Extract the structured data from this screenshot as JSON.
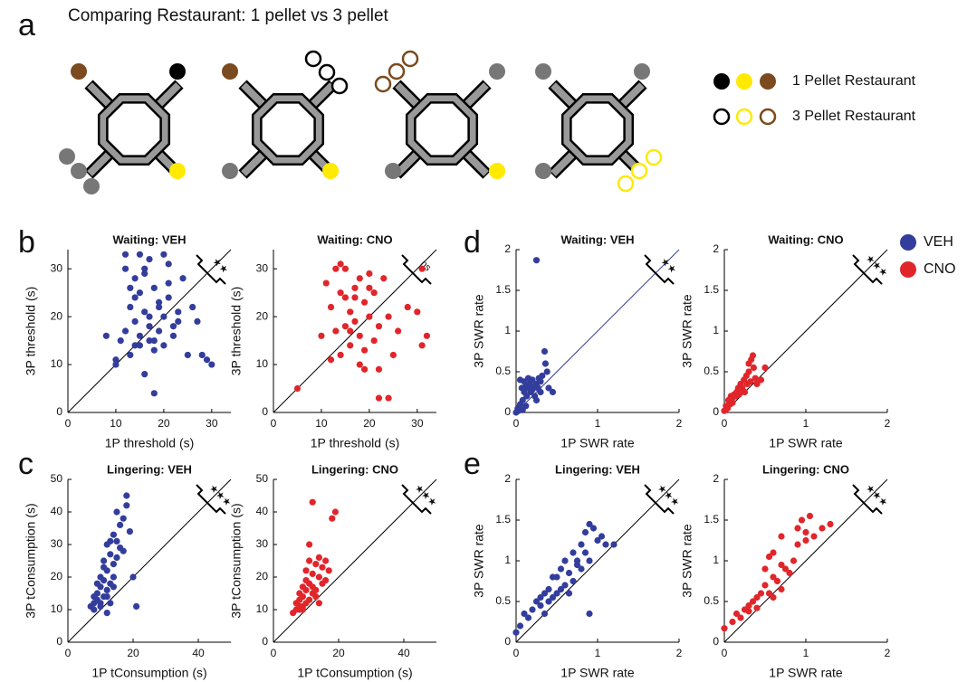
{
  "panel_labels": [
    "a",
    "b",
    "c",
    "d",
    "e"
  ],
  "panel_a": {
    "title": "Comparing Restaurant: 1 pellet vs 3 pellet",
    "legend": [
      "1 Pellet Restaurant",
      "3 Pellet Restaurant"
    ]
  },
  "legend": [
    {
      "name": "VEH",
      "color": "#333d9b"
    },
    {
      "name": "CNO",
      "color": "#e0262b"
    }
  ],
  "chart_data": [
    {
      "type": "scatter",
      "title": "Waiting: VEH",
      "xlabel": "1P threshold (s)",
      "ylabel": "3P threshold (s)",
      "annotation": "★★",
      "color": "#333d9b",
      "diag_color": "#000000",
      "xlim": [
        0,
        34
      ],
      "ylim": [
        0,
        34
      ],
      "xticks": [
        0,
        10,
        20,
        30
      ],
      "yticks": [
        0,
        10,
        20,
        30
      ],
      "x": [
        8,
        10,
        11,
        12,
        12,
        13,
        13,
        14,
        14,
        14,
        15,
        15,
        15,
        16,
        16,
        16,
        17,
        17,
        17,
        18,
        18,
        18,
        19,
        19,
        20,
        20,
        20,
        21,
        21,
        22,
        22,
        23,
        24,
        25,
        26,
        27,
        28,
        29,
        30,
        13,
        15,
        17,
        19,
        21,
        12,
        14,
        16,
        18,
        10,
        23
      ],
      "y": [
        16,
        10,
        15,
        33,
        30,
        22,
        12,
        28,
        19,
        14,
        33,
        25,
        16,
        30,
        21,
        8,
        32,
        18,
        15,
        26,
        13,
        4,
        22,
        17,
        33,
        20,
        14,
        31,
        24,
        18,
        16,
        21,
        28,
        12,
        22,
        19,
        12,
        11,
        10,
        26,
        14,
        20,
        23,
        27,
        17,
        24,
        29,
        15,
        11,
        19
      ]
    },
    {
      "type": "scatter",
      "title": "Waiting: CNO",
      "xlabel": "1P threshold (s)",
      "ylabel": "3P threshold (s)",
      "annotation": "ns",
      "color": "#e0262b",
      "diag_color": "#000000",
      "xlim": [
        0,
        34
      ],
      "ylim": [
        0,
        34
      ],
      "xticks": [
        0,
        10,
        20,
        30
      ],
      "yticks": [
        0,
        10,
        20,
        30
      ],
      "x": [
        5,
        10,
        11,
        12,
        13,
        13,
        14,
        14,
        15,
        15,
        15,
        16,
        16,
        17,
        17,
        18,
        18,
        18,
        19,
        19,
        20,
        20,
        21,
        21,
        22,
        22,
        23,
        24,
        25,
        26,
        28,
        30,
        31,
        31,
        32,
        22,
        24,
        12,
        16,
        19,
        14,
        17,
        20
      ],
      "y": [
        5,
        16,
        27,
        22,
        30,
        17,
        25,
        12,
        24,
        18,
        30,
        14,
        21,
        26,
        19,
        28,
        10,
        16,
        23,
        9,
        20,
        29,
        15,
        25,
        3,
        18,
        28,
        3,
        12,
        17,
        22,
        21,
        14,
        30,
        16,
        9,
        20,
        11,
        17,
        13,
        31,
        24,
        26
      ]
    },
    {
      "type": "scatter",
      "title": "Waiting: VEH",
      "xlabel": "1P SWR rate",
      "ylabel": "3P SWR rate",
      "annotation": "★★",
      "color": "#333d9b",
      "diag_color": "#333d9b",
      "xlim": [
        0,
        2
      ],
      "ylim": [
        0,
        2
      ],
      "xticks": [
        0,
        1,
        2
      ],
      "yticks": [
        0,
        0.5,
        1,
        1.5,
        2
      ],
      "x": [
        0.0,
        0.02,
        0.03,
        0.05,
        0.05,
        0.07,
        0.08,
        0.1,
        0.1,
        0.12,
        0.13,
        0.15,
        0.15,
        0.17,
        0.18,
        0.2,
        0.2,
        0.22,
        0.23,
        0.25,
        0.25,
        0.27,
        0.28,
        0.3,
        0.3,
        0.32,
        0.35,
        0.36,
        0.38,
        0.4,
        0.45,
        0.25,
        0.12,
        0.08
      ],
      "y": [
        0.0,
        0.05,
        0.02,
        0.1,
        0.4,
        0.3,
        0.15,
        0.38,
        0.25,
        0.32,
        0.2,
        0.42,
        0.3,
        0.35,
        0.25,
        0.4,
        0.28,
        0.32,
        0.2,
        1.87,
        0.35,
        0.3,
        0.42,
        0.25,
        0.38,
        0.45,
        0.75,
        0.6,
        0.5,
        0.3,
        0.25,
        0.15,
        0.08,
        0.03
      ]
    },
    {
      "type": "scatter",
      "title": "Waiting: CNO",
      "xlabel": "1P SWR rate",
      "ylabel": "3P SWR rate",
      "annotation": "★★★",
      "color": "#e0262b",
      "diag_color": "#000000",
      "xlim": [
        0,
        2
      ],
      "ylim": [
        0,
        2
      ],
      "xticks": [
        0,
        1,
        2
      ],
      "yticks": [
        0,
        0.5,
        1,
        1.5,
        2
      ],
      "x": [
        0.0,
        0.02,
        0.04,
        0.05,
        0.07,
        0.08,
        0.1,
        0.1,
        0.12,
        0.14,
        0.15,
        0.17,
        0.18,
        0.2,
        0.2,
        0.22,
        0.24,
        0.25,
        0.27,
        0.28,
        0.3,
        0.3,
        0.32,
        0.35,
        0.36,
        0.38,
        0.4,
        0.45,
        0.5,
        0.33
      ],
      "y": [
        0.02,
        0.08,
        0.05,
        0.15,
        0.1,
        0.2,
        0.18,
        0.12,
        0.22,
        0.2,
        0.25,
        0.3,
        0.22,
        0.28,
        0.35,
        0.3,
        0.4,
        0.25,
        0.45,
        0.35,
        0.5,
        0.6,
        0.38,
        0.7,
        0.55,
        0.42,
        0.35,
        0.4,
        0.55,
        0.65
      ]
    },
    {
      "type": "scatter",
      "title": "Lingering: VEH",
      "xlabel": "1P tConsumption (s)",
      "ylabel": "3P tConsumption (s)",
      "annotation": "★★★",
      "color": "#333d9b",
      "diag_color": "#000000",
      "xlim": [
        0,
        50
      ],
      "ylim": [
        0,
        50
      ],
      "xticks": [
        0,
        20,
        40
      ],
      "yticks": [
        0,
        10,
        20,
        30,
        40,
        50
      ],
      "x": [
        7,
        8,
        8,
        9,
        9,
        10,
        10,
        10,
        11,
        11,
        11,
        12,
        12,
        12,
        13,
        13,
        13,
        14,
        14,
        14,
        15,
        15,
        16,
        16,
        17,
        17,
        18,
        19,
        20,
        21,
        9,
        10,
        11,
        12,
        13,
        14,
        8,
        15,
        18,
        12
      ],
      "y": [
        11,
        12,
        10,
        13,
        15,
        11,
        17,
        20,
        14,
        19,
        25,
        16,
        22,
        30,
        18,
        27,
        12,
        24,
        33,
        20,
        26,
        40,
        29,
        36,
        28,
        38,
        45,
        34,
        20,
        11,
        18,
        12,
        23,
        14,
        31,
        17,
        14,
        31,
        42,
        9
      ]
    },
    {
      "type": "scatter",
      "title": "Lingering: CNO",
      "xlabel": "1P tConsumption (s)",
      "ylabel": "3P tConsumption (s)",
      "annotation": "★★★",
      "color": "#e0262b",
      "diag_color": "#000000",
      "xlim": [
        0,
        50
      ],
      "ylim": [
        0,
        50
      ],
      "xticks": [
        0,
        20,
        40
      ],
      "yticks": [
        0,
        10,
        20,
        30,
        40,
        50
      ],
      "x": [
        6,
        7,
        7,
        8,
        8,
        8,
        9,
        9,
        9,
        10,
        10,
        10,
        11,
        11,
        11,
        12,
        12,
        12,
        13,
        13,
        14,
        14,
        15,
        15,
        16,
        17,
        18,
        19,
        10,
        9,
        8,
        11,
        12,
        13,
        14,
        16
      ],
      "y": [
        9,
        10,
        12,
        11,
        13,
        15,
        10,
        14,
        17,
        12,
        19,
        22,
        13,
        18,
        30,
        15,
        21,
        43,
        16,
        24,
        20,
        26,
        18,
        23,
        25,
        22,
        38,
        40,
        16,
        11,
        10,
        25,
        17,
        14,
        12,
        19
      ]
    },
    {
      "type": "scatter",
      "title": "Lingering: VEH",
      "xlabel": "1P SWR rate",
      "ylabel": "3P SWR rate",
      "annotation": "★★★",
      "color": "#333d9b",
      "diag_color": "#000000",
      "xlim": [
        0,
        2
      ],
      "ylim": [
        0,
        2
      ],
      "xticks": [
        0,
        1,
        2
      ],
      "yticks": [
        0,
        0.5,
        1,
        1.5,
        2
      ],
      "x": [
        0.0,
        0.05,
        0.1,
        0.15,
        0.2,
        0.25,
        0.3,
        0.3,
        0.35,
        0.4,
        0.4,
        0.45,
        0.5,
        0.5,
        0.55,
        0.6,
        0.6,
        0.65,
        0.7,
        0.7,
        0.75,
        0.8,
        0.8,
        0.85,
        0.9,
        0.9,
        0.95,
        1.0,
        1.05,
        1.1,
        1.2,
        0.9,
        0.45,
        0.35,
        0.55,
        0.65,
        0.75,
        0.85
      ],
      "y": [
        0.12,
        0.2,
        0.35,
        0.3,
        0.4,
        0.5,
        0.45,
        0.55,
        0.6,
        0.5,
        0.65,
        0.55,
        0.6,
        0.8,
        0.65,
        0.7,
        1.0,
        0.85,
        0.75,
        1.1,
        0.95,
        0.9,
        1.2,
        1.35,
        1.45,
        0.35,
        1.4,
        1.25,
        1.3,
        1.2,
        1.2,
        1.0,
        0.8,
        0.35,
        0.9,
        0.6,
        1.0,
        1.1
      ]
    },
    {
      "type": "scatter",
      "title": "Lingering: CNO",
      "xlabel": "1P SWR rate",
      "ylabel": "3P SWR rate",
      "annotation": "★★★",
      "color": "#e0262b",
      "diag_color": "#000000",
      "xlim": [
        0,
        2
      ],
      "ylim": [
        0,
        2
      ],
      "xticks": [
        0,
        1,
        2
      ],
      "yticks": [
        0,
        0.5,
        1,
        1.5,
        2
      ],
      "x": [
        0.0,
        0.1,
        0.15,
        0.2,
        0.25,
        0.3,
        0.3,
        0.35,
        0.4,
        0.4,
        0.45,
        0.5,
        0.5,
        0.55,
        0.55,
        0.6,
        0.6,
        0.65,
        0.7,
        0.7,
        0.75,
        0.8,
        0.85,
        0.9,
        0.9,
        0.95,
        1.0,
        1.0,
        1.05,
        1.1,
        1.2,
        1.3,
        0.6,
        0.7
      ],
      "y": [
        0.17,
        0.25,
        0.35,
        0.3,
        0.4,
        0.38,
        0.45,
        0.5,
        0.42,
        0.55,
        0.6,
        0.7,
        0.9,
        0.6,
        1.05,
        0.8,
        1.1,
        0.75,
        0.95,
        1.3,
        0.9,
        0.85,
        1.0,
        1.4,
        1.2,
        1.5,
        1.35,
        1.25,
        1.55,
        1.3,
        1.4,
        1.45,
        0.55,
        0.65
      ]
    }
  ]
}
